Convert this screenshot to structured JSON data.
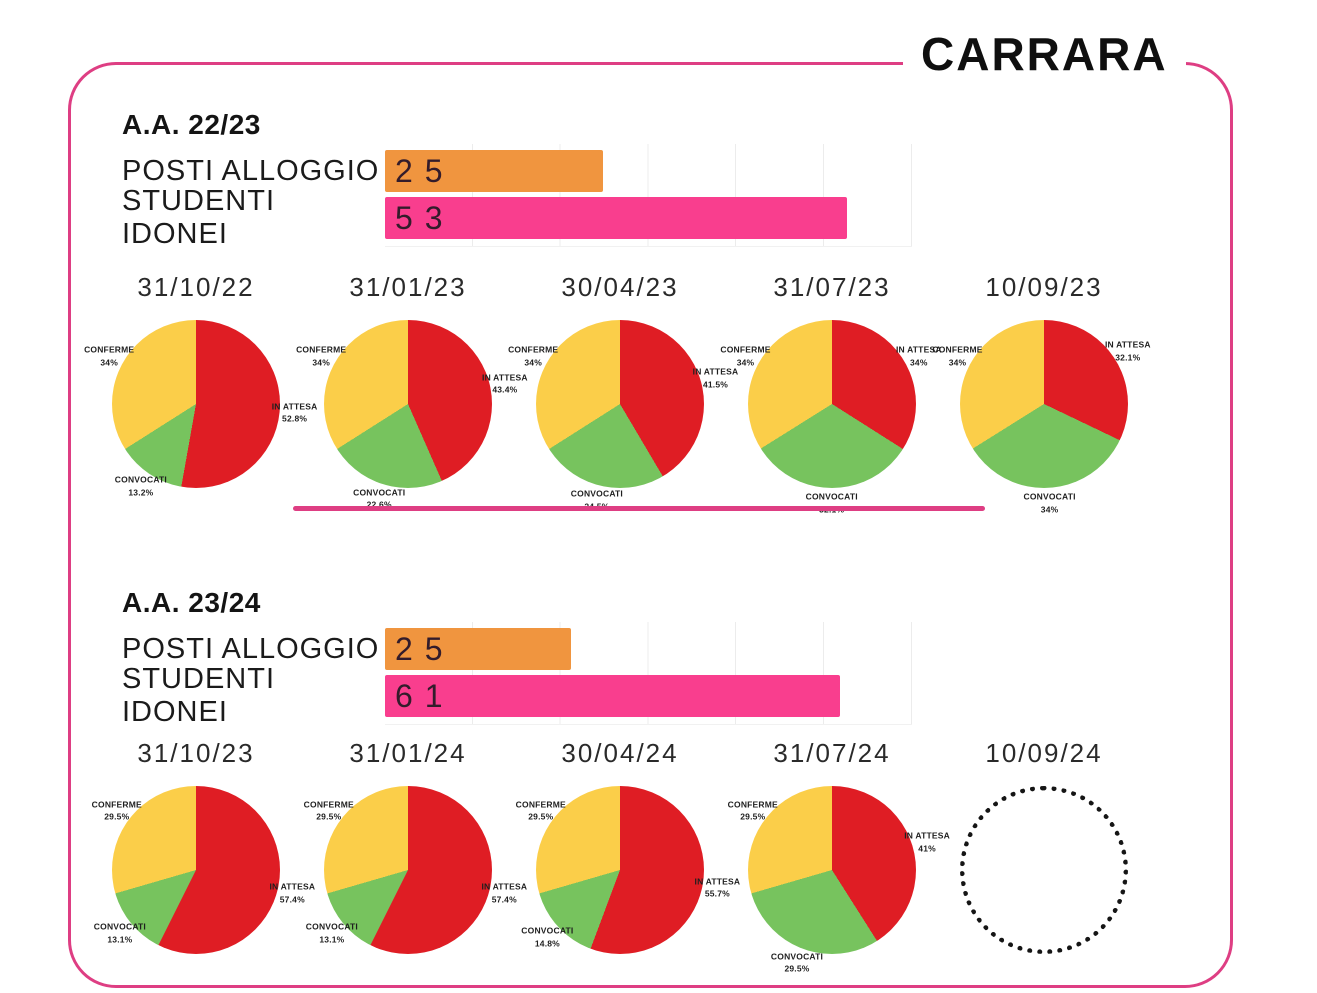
{
  "title": "CARRARA",
  "theme": {
    "border_pink": "#DE3E83",
    "separator_pink": "#DE3E83",
    "orange": "#F0953F",
    "bar_pink": "#F93E8E",
    "red": "#DF1D24",
    "green": "#77C35E",
    "yellow": "#FBCE49",
    "grid_gray": "#ECECEC"
  },
  "chart_data": {
    "sections": [
      {
        "header": "A.A. 22/23",
        "bar_chart": {
          "type": "bar",
          "categories": [
            "POSTI ALLOGGIO",
            "STUDENTI IDONEI"
          ],
          "values": [
            25,
            53
          ],
          "value_labels": [
            "25",
            "53"
          ],
          "colors": [
            "#F0953F",
            "#F93E8E"
          ],
          "xlim": [
            0,
            60.5
          ],
          "grid": true
        },
        "pie_charts": [
          {
            "type": "pie",
            "title": "31/10/22",
            "slices": [
              {
                "label": "IN ATTESA",
                "value": 52.8,
                "display": "52.8%",
                "color": "#DF1D24"
              },
              {
                "label": "CONVOCATI",
                "value": 13.2,
                "display": "13.2%",
                "color": "#77C35E"
              },
              {
                "label": "CONFERME",
                "value": 34,
                "display": "34%",
                "color": "#FBCE49"
              }
            ]
          },
          {
            "type": "pie",
            "title": "31/01/23",
            "slices": [
              {
                "label": "IN ATTESA",
                "value": 43.4,
                "display": "43.4%",
                "color": "#DF1D24"
              },
              {
                "label": "CONVOCATI",
                "value": 22.6,
                "display": "22.6%",
                "color": "#77C35E"
              },
              {
                "label": "CONFERME",
                "value": 34,
                "display": "34%",
                "color": "#FBCE49"
              }
            ]
          },
          {
            "type": "pie",
            "title": "30/04/23",
            "slices": [
              {
                "label": "IN ATTESA",
                "value": 41.5,
                "display": "41.5%",
                "color": "#DF1D24"
              },
              {
                "label": "CONVOCATI",
                "value": 24.5,
                "display": "24.5%",
                "color": "#77C35E"
              },
              {
                "label": "CONFERME",
                "value": 34,
                "display": "34%",
                "color": "#FBCE49"
              }
            ]
          },
          {
            "type": "pie",
            "title": "31/07/23",
            "slices": [
              {
                "label": "IN ATTESA",
                "value": 34,
                "display": "34%",
                "color": "#DF1D24"
              },
              {
                "label": "CONVOCATI",
                "value": 32.1,
                "display": "32.1%",
                "color": "#77C35E"
              },
              {
                "label": "CONFERME",
                "value": 34,
                "display": "34%",
                "color": "#FBCE49"
              }
            ]
          },
          {
            "type": "pie",
            "title": "10/09/23",
            "slices": [
              {
                "label": "IN ATTESA",
                "value": 32.1,
                "display": "32.1%",
                "color": "#DF1D24"
              },
              {
                "label": "CONVOCATI",
                "value": 34,
                "display": "34%",
                "color": "#77C35E"
              },
              {
                "label": "CONFERME",
                "value": 34,
                "display": "34%",
                "color": "#FBCE49"
              }
            ]
          }
        ]
      },
      {
        "header": "A.A. 23/24",
        "bar_chart": {
          "type": "bar",
          "categories": [
            "POSTI ALLOGGIO",
            "STUDENTI IDONEI"
          ],
          "values": [
            25,
            61
          ],
          "value_labels": [
            "25",
            "61"
          ],
          "colors": [
            "#F0953F",
            "#F93E8E"
          ],
          "xlim": [
            0,
            70.7
          ],
          "grid": true
        },
        "pie_charts": [
          {
            "type": "pie",
            "title": "31/10/23",
            "slices": [
              {
                "label": "IN ATTESA",
                "value": 57.4,
                "display": "57.4%",
                "color": "#DF1D24"
              },
              {
                "label": "CONVOCATI",
                "value": 13.1,
                "display": "13.1%",
                "color": "#77C35E"
              },
              {
                "label": "CONFERME",
                "value": 29.5,
                "display": "29.5%",
                "color": "#FBCE49"
              }
            ]
          },
          {
            "type": "pie",
            "title": "31/01/24",
            "slices": [
              {
                "label": "IN ATTESA",
                "value": 57.4,
                "display": "57.4%",
                "color": "#DF1D24"
              },
              {
                "label": "CONVOCATI",
                "value": 13.1,
                "display": "13.1%",
                "color": "#77C35E"
              },
              {
                "label": "CONFERME",
                "value": 29.5,
                "display": "29.5%",
                "color": "#FBCE49"
              }
            ]
          },
          {
            "type": "pie",
            "title": "30/04/24",
            "slices": [
              {
                "label": "IN ATTESA",
                "value": 55.7,
                "display": "55.7%",
                "color": "#DF1D24"
              },
              {
                "label": "CONVOCATI",
                "value": 14.8,
                "display": "14.8%",
                "color": "#77C35E"
              },
              {
                "label": "CONFERME",
                "value": 29.5,
                "display": "29.5%",
                "color": "#FBCE49"
              }
            ]
          },
          {
            "type": "pie",
            "title": "31/07/24",
            "slices": [
              {
                "label": "IN ATTESA",
                "value": 41,
                "display": "41%",
                "color": "#DF1D24"
              },
              {
                "label": "CONVOCATI",
                "value": 29.5,
                "display": "29.5%",
                "color": "#77C35E"
              },
              {
                "label": "CONFERME",
                "value": 29.5,
                "display": "29.5%",
                "color": "#FBCE49"
              }
            ]
          },
          {
            "type": "pie",
            "title": "10/09/24",
            "empty": true,
            "slices": []
          }
        ]
      }
    ]
  }
}
